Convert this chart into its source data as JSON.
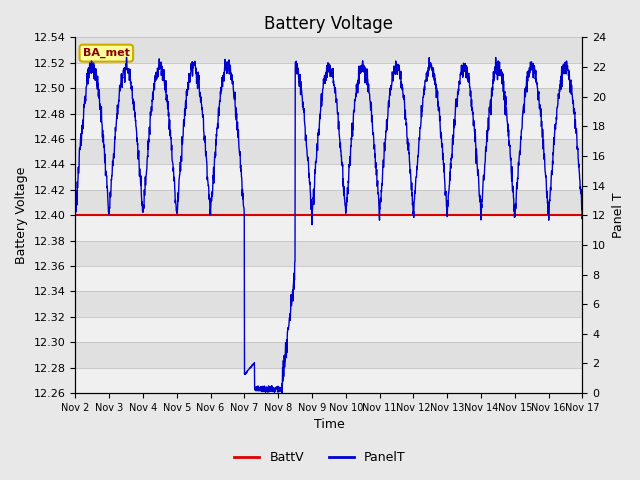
{
  "title": "Battery Voltage",
  "xlabel": "Time",
  "ylabel_left": "Battery Voltage",
  "ylabel_right": "Panel T",
  "ylim_left": [
    12.26,
    12.54
  ],
  "ylim_right": [
    0,
    24
  ],
  "yticks_left": [
    12.26,
    12.28,
    12.3,
    12.32,
    12.34,
    12.36,
    12.38,
    12.4,
    12.42,
    12.44,
    12.46,
    12.48,
    12.5,
    12.52,
    12.54
  ],
  "yticks_right": [
    0,
    2,
    4,
    6,
    8,
    10,
    12,
    14,
    16,
    18,
    20,
    22,
    24
  ],
  "xtick_labels": [
    "Nov 2",
    "Nov 3",
    "Nov 4",
    "Nov 5",
    "Nov 6",
    "Nov 7",
    "Nov 8",
    "Nov 9",
    "Nov 10",
    "Nov 11",
    "Nov 12",
    "Nov 13",
    "Nov 14",
    "Nov 15",
    "Nov 16",
    "Nov 17"
  ],
  "battv_value": 12.4,
  "bg_color": "#e8e8e8",
  "plot_bg_color": "#e0e0e0",
  "stripe_color": "#f0f0f0",
  "line_color_battv": "#dd0000",
  "line_color_panelt": "#0000cc",
  "legend_label_battv": "BattV",
  "legend_label_panelt": "PanelT",
  "watermark_text": "BA_met",
  "watermark_bg": "#ffff99",
  "watermark_border": "#ccaa00",
  "title_fontsize": 12,
  "axis_label_fontsize": 9,
  "tick_fontsize": 8
}
